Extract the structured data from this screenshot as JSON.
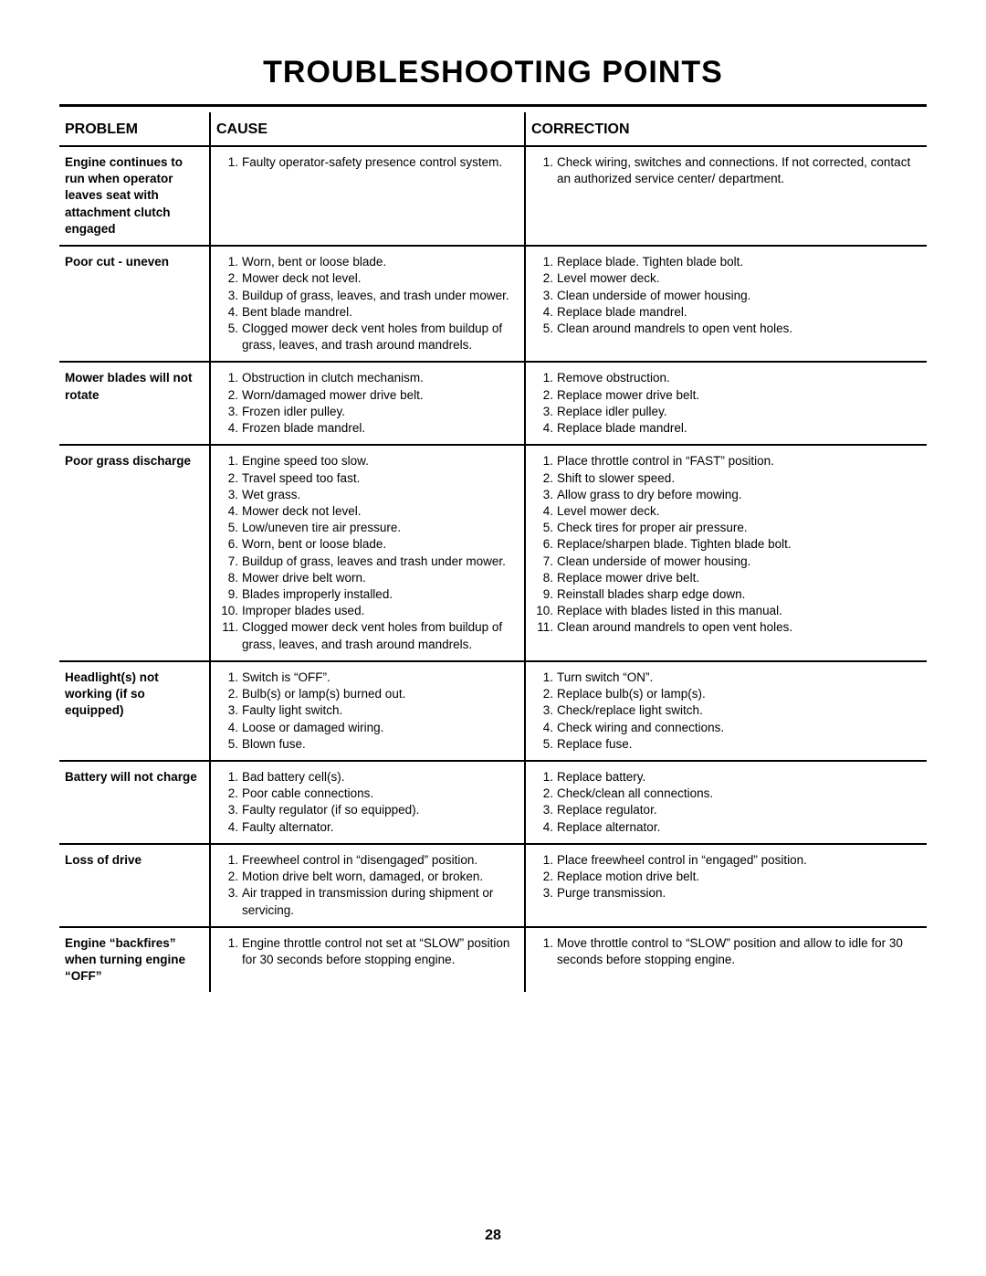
{
  "page": {
    "title": "TROUBLESHOOTING POINTS",
    "number": "28",
    "background_color": "#ffffff",
    "border_color": "#000000",
    "font_family": "Arial, Helvetica, sans-serif",
    "title_fontsize": 34,
    "body_fontsize": 13.5
  },
  "table": {
    "columns": [
      "PROBLEM",
      "CAUSE",
      "CORRECTION"
    ],
    "rows": [
      {
        "problem": "Engine continues to run when operator leaves seat with attachment clutch engaged",
        "causes": [
          "Faulty operator-safety presence control system."
        ],
        "corrections": [
          "Check wiring, switches  and connections.  If not corrected, contact an authorized service center/ department."
        ]
      },
      {
        "problem": "Poor cut - uneven",
        "causes": [
          "Worn, bent or loose blade.",
          "Mower deck not level.",
          "Buildup of grass, leaves, and trash under mower.",
          "Bent blade mandrel.",
          "Clogged mower deck vent holes from buildup of grass, leaves, and trash around mandrels."
        ],
        "corrections": [
          "Replace blade.  Tighten blade bolt.",
          "Level mower deck.",
          "Clean underside of mower housing.",
          "Replace blade mandrel.",
          "Clean around mandrels to open vent holes."
        ]
      },
      {
        "problem": "Mower blades will not rotate",
        "causes": [
          "Obstruction in clutch mechanism.",
          "Worn/damaged mower drive belt.",
          "Frozen idler pulley.",
          "Frozen blade mandrel."
        ],
        "corrections": [
          "Remove obstruction.",
          "Replace mower drive belt.",
          "Replace idler pulley.",
          "Replace blade mandrel."
        ]
      },
      {
        "problem": "Poor grass discharge",
        "causes": [
          "Engine speed too slow.",
          "Travel speed too fast.",
          "Wet grass.",
          "Mower deck not level.",
          "Low/uneven tire air pressure.",
          "Worn, bent or loose blade.",
          "Buildup of grass, leaves and trash under mower.",
          "Mower drive belt worn.",
          "Blades improperly installed.",
          "Improper blades used.",
          "Clogged mower deck vent holes from buildup of grass, leaves, and trash around mandrels."
        ],
        "corrections": [
          "Place throttle control in “FAST” position.",
          "Shift to slower speed.",
          "Allow grass to dry before mowing.",
          "Level mower deck.",
          "Check tires for proper air pressure.",
          "Replace/sharpen blade.  Tighten blade bolt.",
          "Clean underside of mower housing.",
          "Replace mower drive belt.",
          "Reinstall blades sharp edge down.",
          "Replace with blades listed in this manual.",
          "Clean around mandrels to open vent holes."
        ]
      },
      {
        "problem": "Headlight(s) not working (if so equipped)",
        "causes": [
          "Switch is “OFF”.",
          "Bulb(s) or lamp(s) burned out.",
          "Faulty light switch.",
          "Loose or damaged wiring.",
          "Blown fuse."
        ],
        "corrections": [
          "Turn switch “ON”.",
          "Replace bulb(s) or lamp(s).",
          "Check/replace light switch.",
          "Check wiring and connections.",
          "Replace fuse."
        ]
      },
      {
        "problem": "Battery will not charge",
        "causes": [
          "Bad battery cell(s).",
          "Poor cable connections.",
          "Faulty regulator (if so equipped).",
          "Faulty alternator."
        ],
        "corrections": [
          "Replace battery.",
          "Check/clean all connections.",
          "Replace regulator.",
          "Replace alternator."
        ]
      },
      {
        "problem": "Loss of drive",
        "causes": [
          "Freewheel control in “disengaged” position.",
          "Motion drive belt worn, damaged, or broken.",
          "Air trapped in transmission during shipment or servicing."
        ],
        "corrections": [
          "Place freewheel control in “engaged” position.",
          "Replace motion drive belt.",
          "Purge transmission."
        ]
      },
      {
        "problem": "Engine “backfires” when turning engine “OFF”",
        "causes": [
          "Engine throttle control not set at “SLOW” position for 30 seconds before stopping engine."
        ],
        "corrections": [
          "Move throttle control to “SLOW” position and allow to idle for 30 seconds before stopping engine."
        ]
      }
    ]
  }
}
